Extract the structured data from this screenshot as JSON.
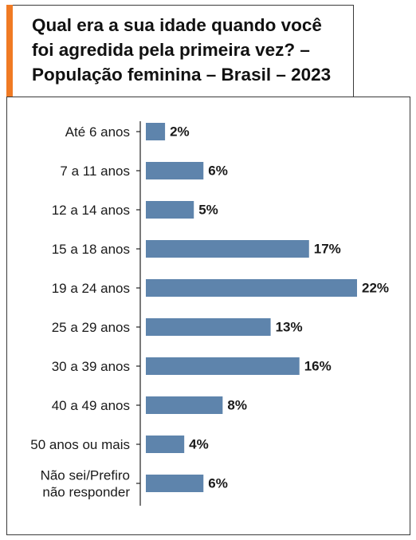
{
  "chart_data": {
    "type": "bar",
    "orientation": "horizontal",
    "title": "Qual era a sua idade quando você foi agredida pela primeira vez? – População feminina – Brasil – 2023",
    "title_lines": [
      "Qual era a sua idade quando você",
      "foi agredida pela primeira vez? –",
      "População feminina – Brasil – 2023"
    ],
    "categories": [
      [
        "Até 6 anos"
      ],
      [
        "7 a 11 anos"
      ],
      [
        "12 a 14 anos"
      ],
      [
        "15 a 18 anos"
      ],
      [
        "19 a 24 anos"
      ],
      [
        "25 a 29 anos"
      ],
      [
        "30 a 39 anos"
      ],
      [
        "40 a 49 anos"
      ],
      [
        "50 anos ou mais"
      ],
      [
        "Não sei/Prefiro",
        "não responder"
      ]
    ],
    "values": [
      2,
      6,
      5,
      17,
      22,
      13,
      16,
      8,
      4,
      6
    ],
    "value_labels": [
      "2%",
      "6%",
      "5%",
      "17%",
      "22%",
      "13%",
      "16%",
      "8%",
      "4%",
      "6%"
    ],
    "unit": "%",
    "xlim": [
      0,
      22
    ],
    "grid": false,
    "legend": "none",
    "bar_color": "#5e84ac",
    "accent_color": "#f07a24"
  }
}
